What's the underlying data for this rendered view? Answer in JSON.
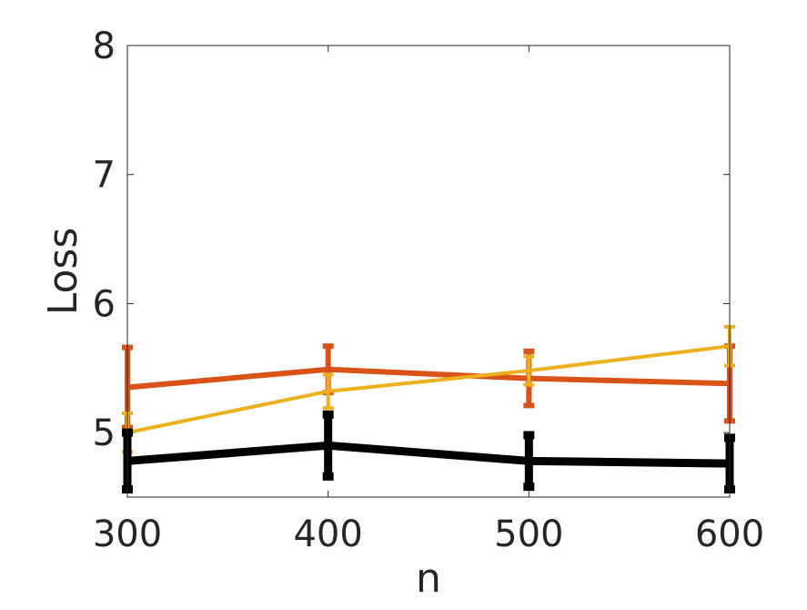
{
  "chart_data": {
    "type": "line",
    "title": "",
    "xlabel": "n",
    "ylabel": "Loss",
    "x": [
      300,
      400,
      500,
      600
    ],
    "xlim": [
      300,
      600
    ],
    "ylim": [
      4.5,
      8
    ],
    "xticks": [
      "300",
      "400",
      "500",
      "600"
    ],
    "yticks": [
      "5",
      "6",
      "7",
      "8"
    ],
    "grid": false,
    "series": [
      {
        "color": "#D95319",
        "values": [
          5.35,
          5.49,
          5.42,
          5.38
        ],
        "error": [
          0.31,
          0.18,
          0.21,
          0.29
        ]
      },
      {
        "color": "#EDB120",
        "values": [
          5.0,
          5.32,
          5.48,
          5.67
        ],
        "error": [
          0.15,
          0.13,
          0.11,
          0.15
        ]
      },
      {
        "color": "#000000",
        "values": [
          4.78,
          4.9,
          4.78,
          4.76
        ],
        "error": [
          0.22,
          0.24,
          0.2,
          0.2
        ]
      }
    ]
  }
}
